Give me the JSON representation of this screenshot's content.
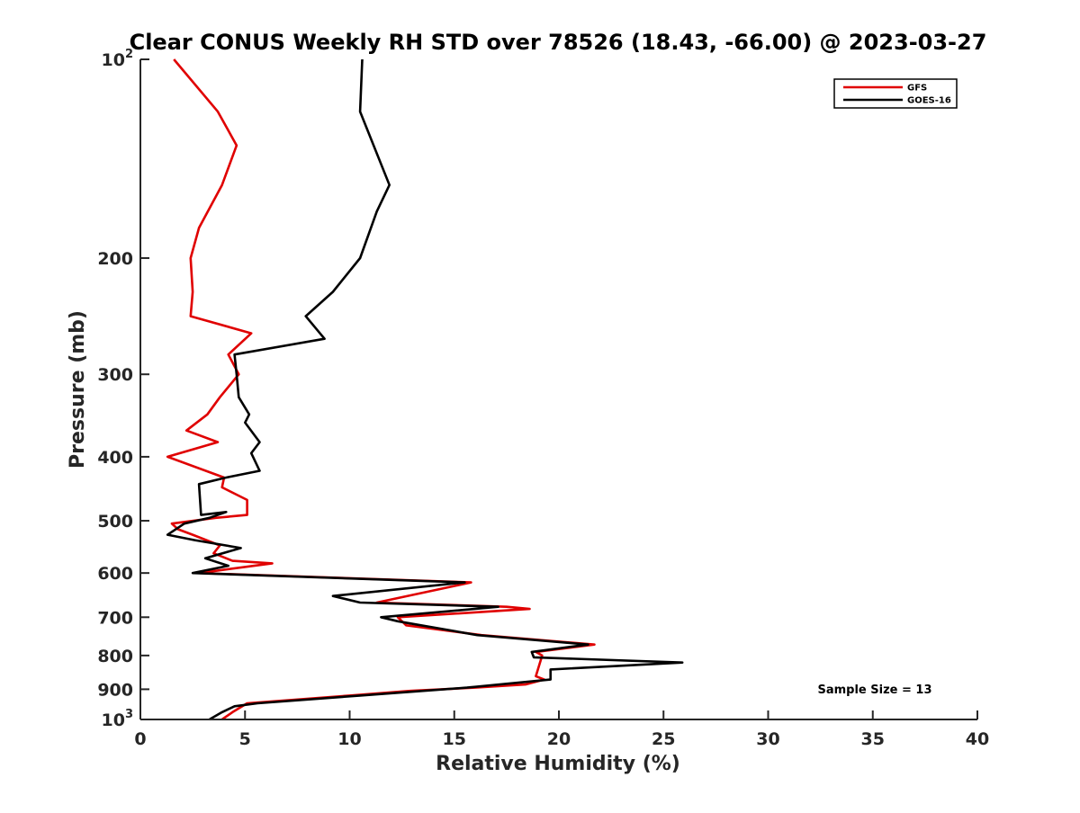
{
  "chart_data": {
    "type": "line",
    "title": "Clear CONUS Weekly RH STD over 78526 (18.43, -66.00) @ 2023-03-27",
    "xlabel": "Relative Humidity (%)",
    "ylabel": "Pressure (mb)",
    "xlim": [
      0,
      40
    ],
    "ylim": [
      100,
      1000
    ],
    "yscale": "log",
    "y_reversed": true,
    "grid": false,
    "legend_position": "top-right",
    "x_ticks": [
      "0",
      "5",
      "10",
      "15",
      "20",
      "25",
      "30",
      "35",
      "40"
    ],
    "y_ticks": [
      {
        "value": 100,
        "base": "10",
        "exp": "2"
      },
      {
        "value": 200,
        "label": "200"
      },
      {
        "value": 300,
        "label": "300"
      },
      {
        "value": 400,
        "label": "400"
      },
      {
        "value": 500,
        "label": "500"
      },
      {
        "value": 600,
        "label": "600"
      },
      {
        "value": 700,
        "label": "700"
      },
      {
        "value": 800,
        "label": "800"
      },
      {
        "value": 900,
        "label": "900"
      },
      {
        "value": 1000,
        "base": "10",
        "exp": "3"
      }
    ],
    "annotation": "Sample Size = 13",
    "series": [
      {
        "name": "GFS",
        "color": "#e00000",
        "points": [
          [
            1.6,
            100
          ],
          [
            3.7,
            120
          ],
          [
            4.6,
            135
          ],
          [
            3.9,
            155
          ],
          [
            2.8,
            180
          ],
          [
            2.4,
            200
          ],
          [
            2.5,
            225
          ],
          [
            2.4,
            245
          ],
          [
            5.3,
            260
          ],
          [
            4.2,
            280
          ],
          [
            4.7,
            300
          ],
          [
            3.8,
            325
          ],
          [
            3.2,
            345
          ],
          [
            2.2,
            365
          ],
          [
            3.7,
            380
          ],
          [
            1.3,
            400
          ],
          [
            4.0,
            430
          ],
          [
            3.9,
            445
          ],
          [
            5.1,
            465
          ],
          [
            5.1,
            490
          ],
          [
            3.6,
            495
          ],
          [
            1.5,
            505
          ],
          [
            1.8,
            515
          ],
          [
            2.5,
            525
          ],
          [
            3.8,
            545
          ],
          [
            3.5,
            560
          ],
          [
            4.4,
            575
          ],
          [
            6.3,
            580
          ],
          [
            2.8,
            600
          ],
          [
            15.8,
            620
          ],
          [
            11.3,
            665
          ],
          [
            17.5,
            675
          ],
          [
            18.6,
            680
          ],
          [
            12.3,
            700
          ],
          [
            12.7,
            720
          ],
          [
            16.3,
            745
          ],
          [
            21.7,
            770
          ],
          [
            18.9,
            790
          ],
          [
            19.2,
            800
          ],
          [
            18.9,
            860
          ],
          [
            19.3,
            870
          ],
          [
            18.4,
            885
          ],
          [
            16.0,
            895
          ],
          [
            12.9,
            905
          ],
          [
            10.0,
            920
          ],
          [
            5.1,
            945
          ],
          [
            4.4,
            975
          ],
          [
            3.9,
            1000
          ]
        ]
      },
      {
        "name": "GOES-16",
        "color": "#000000",
        "points": [
          [
            10.6,
            100
          ],
          [
            10.5,
            120
          ],
          [
            11.9,
            155
          ],
          [
            11.3,
            170
          ],
          [
            10.5,
            200
          ],
          [
            9.2,
            225
          ],
          [
            7.9,
            245
          ],
          [
            8.8,
            265
          ],
          [
            4.5,
            280
          ],
          [
            4.6,
            300
          ],
          [
            4.7,
            325
          ],
          [
            5.2,
            345
          ],
          [
            5.0,
            355
          ],
          [
            5.7,
            380
          ],
          [
            5.3,
            395
          ],
          [
            5.7,
            420
          ],
          [
            4.1,
            430
          ],
          [
            2.8,
            440
          ],
          [
            2.9,
            490
          ],
          [
            4.1,
            485
          ],
          [
            3.3,
            495
          ],
          [
            2.1,
            505
          ],
          [
            1.3,
            525
          ],
          [
            2.6,
            535
          ],
          [
            4.8,
            550
          ],
          [
            3.1,
            570
          ],
          [
            4.2,
            585
          ],
          [
            2.5,
            600
          ],
          [
            15.5,
            620
          ],
          [
            9.2,
            650
          ],
          [
            10.5,
            665
          ],
          [
            17.1,
            675
          ],
          [
            11.5,
            700
          ],
          [
            12.3,
            710
          ],
          [
            16.1,
            745
          ],
          [
            21.4,
            770
          ],
          [
            18.7,
            790
          ],
          [
            18.8,
            805
          ],
          [
            25.9,
            820
          ],
          [
            19.6,
            840
          ],
          [
            19.6,
            870
          ],
          [
            15.6,
            895
          ],
          [
            10.5,
            920
          ],
          [
            5.6,
            945
          ],
          [
            4.5,
            955
          ],
          [
            3.9,
            975
          ],
          [
            3.3,
            1000
          ]
        ]
      }
    ]
  }
}
